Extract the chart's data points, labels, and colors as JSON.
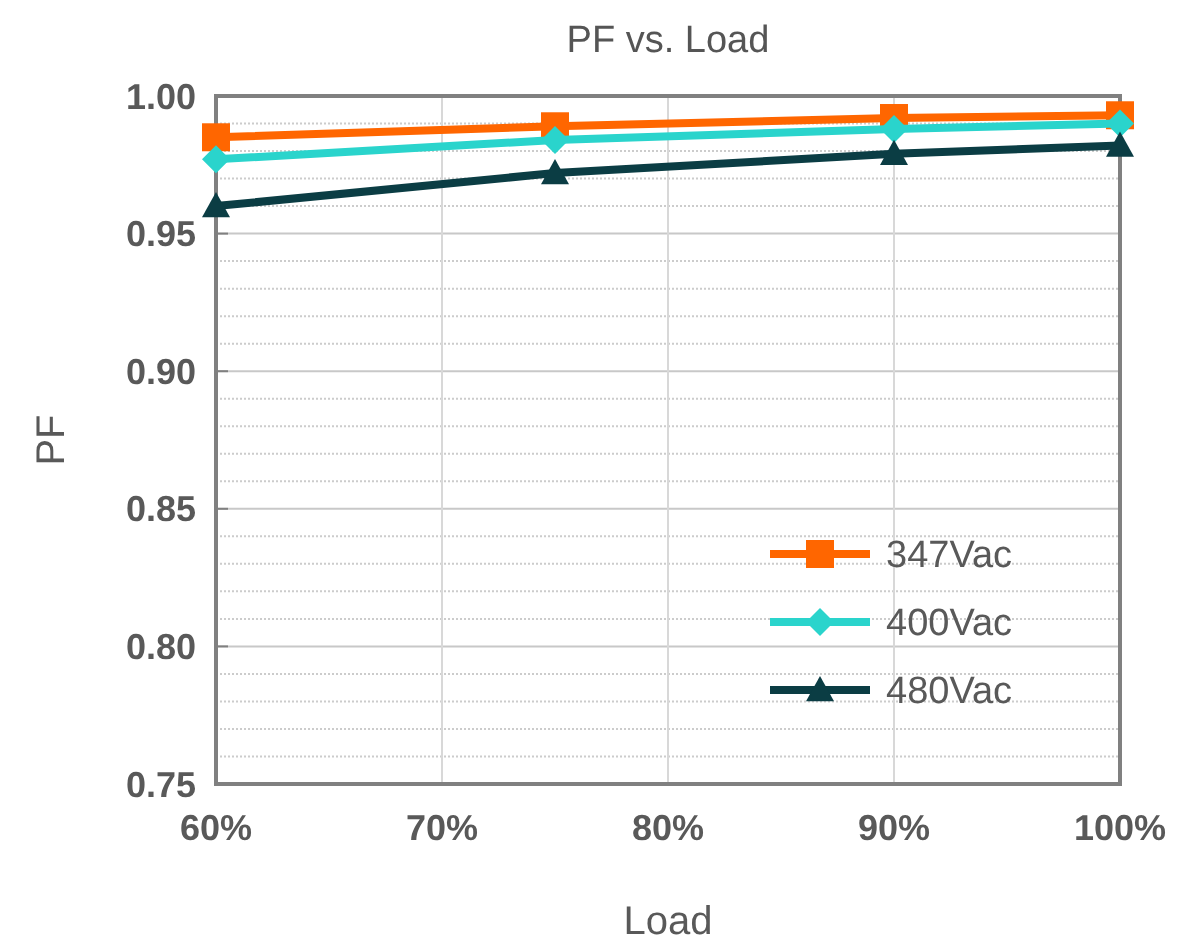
{
  "chart_data": {
    "type": "line",
    "title": "PF vs. Load",
    "xlabel": "Load",
    "ylabel": "PF",
    "x": [
      60,
      75,
      90,
      100
    ],
    "xlim": [
      60,
      100
    ],
    "xticks": [
      {
        "value": 60,
        "label": "60%"
      },
      {
        "value": 70,
        "label": "70%"
      },
      {
        "value": 80,
        "label": "80%"
      },
      {
        "value": 90,
        "label": "90%"
      },
      {
        "value": 100,
        "label": "100%"
      }
    ],
    "ylim": [
      0.75,
      1.0
    ],
    "yticks": [
      {
        "value": 0.75,
        "label": "0.75"
      },
      {
        "value": 0.8,
        "label": "0.80"
      },
      {
        "value": 0.85,
        "label": "0.85"
      },
      {
        "value": 0.9,
        "label": "0.90"
      },
      {
        "value": 0.95,
        "label": "0.95"
      },
      {
        "value": 1.0,
        "label": "1.00"
      }
    ],
    "grid": true,
    "legend": "bottom right",
    "line_style": "solid",
    "series": [
      {
        "name": "347Vac",
        "color": "#ff6600",
        "marker": "square",
        "values": [
          0.985,
          0.989,
          0.992,
          0.993
        ]
      },
      {
        "name": "400Vac",
        "color": "#2ad4cc",
        "marker": "diamond",
        "values": [
          0.977,
          0.984,
          0.988,
          0.99
        ]
      },
      {
        "name": "480Vac",
        "color": "#0b3d44",
        "marker": "triangle",
        "values": [
          0.96,
          0.972,
          0.979,
          0.982
        ]
      }
    ]
  }
}
